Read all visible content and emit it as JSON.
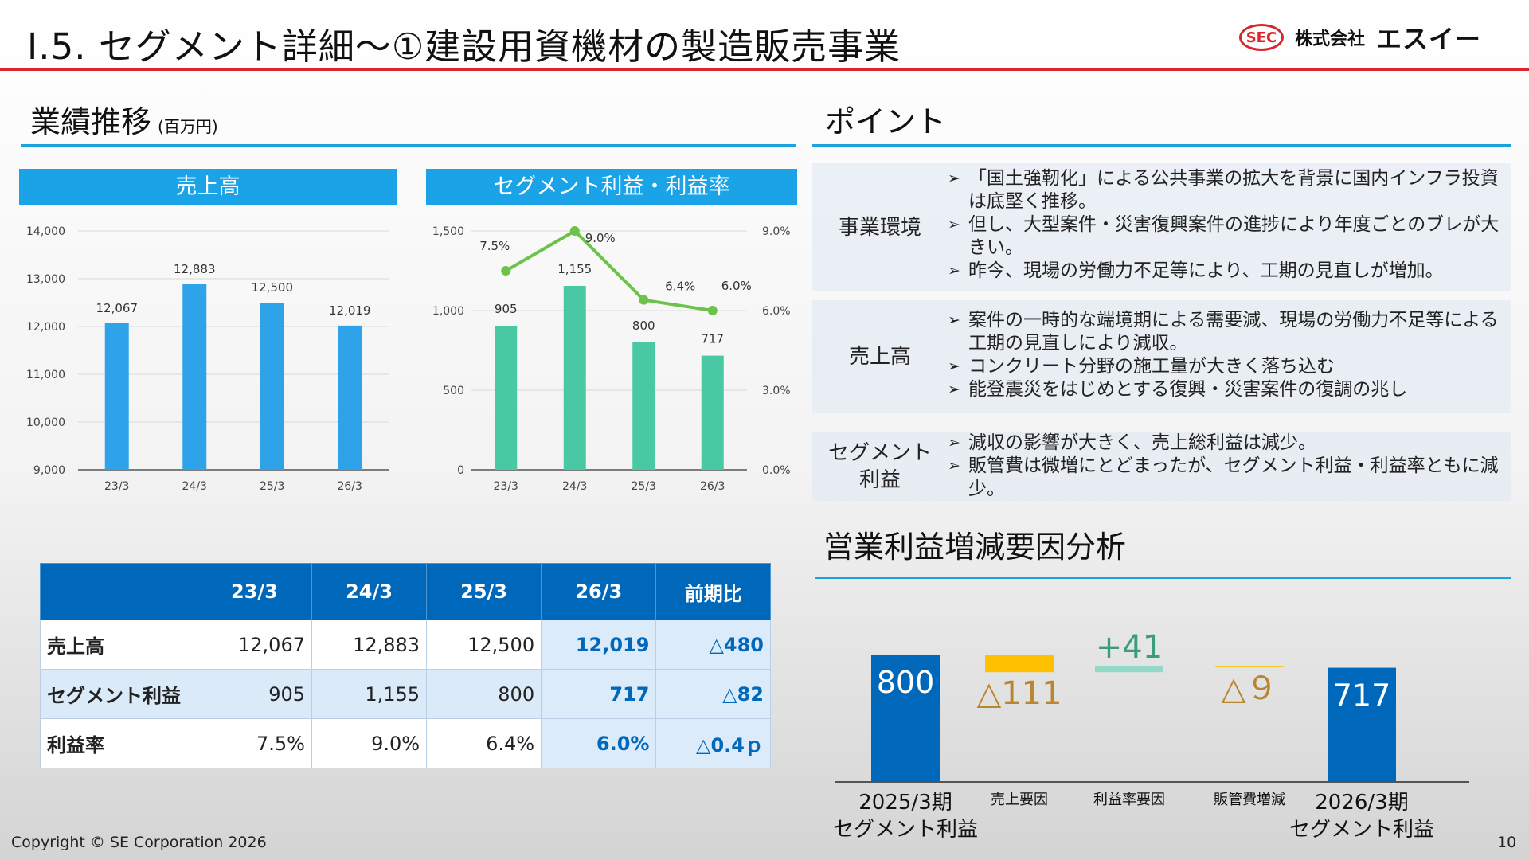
{
  "header": {
    "title": "Ⅰ.5.  セグメント詳細～①建設用資機材の製造販売事業",
    "logo_mark": "SEC",
    "logo_company_type": "株式会社",
    "logo_name": "エスイー"
  },
  "left": {
    "heading": "業績推移",
    "unit": "(百万円)"
  },
  "sales_panel": {
    "title": "売上高"
  },
  "profit_panel": {
    "title": "セグメント利益・利益率"
  },
  "points": {
    "heading": "ポイント",
    "rows": [
      {
        "label": "事業環境",
        "items": [
          "「国土強靭化」による公共事業の拡大を背景に国内インフラ投資は底堅く推移。",
          "但し、大型案件・災害復興案件の進捗により年度ごとのブレが大きい。",
          "昨今、現場の労働力不足等により、工期の見直しが増加。"
        ]
      },
      {
        "label": "売上高",
        "items": [
          "案件の一時的な端境期による需要減、現場の労働力不足等による工期の見直しにより減収。",
          "コンクリート分野の施工量が大きく落ち込む",
          "能登震災をはじめとする復興・災害案件の復調の兆し"
        ]
      },
      {
        "label": "セグメント\n利益",
        "items": [
          "減収の影響が大きく、売上総利益は減少。",
          "販管費は微増にとどまったが、セグメント利益・利益率ともに減少。"
        ]
      }
    ]
  },
  "table": {
    "headers": [
      "",
      "23/3",
      "24/3",
      "25/3",
      "26/3",
      "前期比"
    ],
    "rows": [
      [
        "売上高",
        "12,067",
        "12,883",
        "12,500",
        "12,019",
        "△480"
      ],
      [
        "セグメント利益",
        "905",
        "1,155",
        "800",
        "717",
        "△82"
      ],
      [
        "利益率",
        "7.5%",
        "9.0%",
        "6.4%",
        "6.0%",
        "△0.4ｐ"
      ]
    ]
  },
  "bridge": {
    "heading": "営業利益増減要因分析"
  },
  "footer": {
    "copyright": "Copyright © SE Corporation 2026",
    "page": "10"
  },
  "colors": {
    "sales_bar": "#2ea3ea",
    "profit_bar": "#48c9a4",
    "margin_line": "#6cc24a",
    "bridge_total": "#0068bb",
    "bridge_negative": "#ffc000",
    "bridge_positive": "#92d9c8",
    "negative_text": "#b8862e",
    "positive_text": "#3c9c7e"
  },
  "chart_data": [
    {
      "type": "bar",
      "title": "売上高",
      "categories": [
        "23/3",
        "24/3",
        "25/3",
        "26/3"
      ],
      "values": [
        12067,
        12883,
        12500,
        12019
      ],
      "labels": [
        "12,067",
        "12,883",
        "12,500",
        "12,019"
      ],
      "ylim": [
        9000,
        14000
      ],
      "yticks": [
        "9,000",
        "10,000",
        "11,000",
        "12,000",
        "13,000",
        "14,000"
      ],
      "grid": true
    },
    {
      "type": "bar+line",
      "title": "セグメント利益・利益率",
      "categories": [
        "23/3",
        "24/3",
        "25/3",
        "26/3"
      ],
      "series": [
        {
          "type": "bar",
          "values": [
            905,
            1155,
            800,
            717
          ],
          "labels": [
            "905",
            "1,155",
            "800",
            "717"
          ]
        },
        {
          "type": "line",
          "axis": "right",
          "values": [
            7.5,
            9.0,
            6.4,
            6.0
          ],
          "labels": [
            "7.5%",
            "9.0%",
            "6.4%",
            "6.0%"
          ]
        }
      ],
      "ylim": [
        0,
        1500
      ],
      "yticks": [
        "0",
        "500",
        "1,000",
        "1,500"
      ],
      "y2lim": [
        0,
        9
      ],
      "y2ticks": [
        "0.0%",
        "3.0%",
        "6.0%",
        "9.0%"
      ],
      "grid": true
    },
    {
      "type": "waterfall",
      "title": "営業利益増減要因分析",
      "categories": [
        "2025/3期\nセグメント利益",
        "売上要因",
        "利益率要因",
        "販管費増減",
        "2026/3期\nセグメント利益"
      ],
      "values": [
        800,
        -111,
        41,
        -9,
        717
      ],
      "labels": [
        "800",
        "△111",
        "+41",
        "△９",
        "717"
      ]
    }
  ]
}
